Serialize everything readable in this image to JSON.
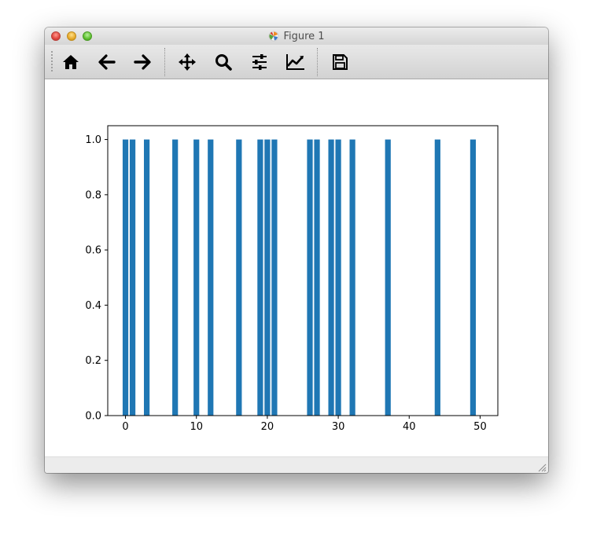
{
  "window": {
    "title": "Figure 1"
  },
  "toolbar": {
    "buttons": [
      {
        "name": "home-button",
        "icon": "home-icon"
      },
      {
        "name": "back-button",
        "icon": "arrow-left-icon"
      },
      {
        "name": "forward-button",
        "icon": "arrow-right-icon"
      },
      {
        "name": "pan-button",
        "icon": "move-arrows-icon"
      },
      {
        "name": "zoom-button",
        "icon": "magnifier-icon"
      },
      {
        "name": "configure-subplots-button",
        "icon": "sliders-icon"
      },
      {
        "name": "edit-axes-button",
        "icon": "line-chart-icon"
      },
      {
        "name": "save-button",
        "icon": "floppy-disk-icon"
      }
    ]
  },
  "colors": {
    "bar": "#1f77b4"
  },
  "chart_data": {
    "type": "bar",
    "x": [
      0,
      1,
      3,
      7,
      10,
      12,
      16,
      19,
      20,
      21,
      26,
      27,
      29,
      30,
      32,
      37,
      44,
      49
    ],
    "values": [
      1,
      1,
      1,
      1,
      1,
      1,
      1,
      1,
      1,
      1,
      1,
      1,
      1,
      1,
      1,
      1,
      1,
      1
    ],
    "xlim": [
      -2.5,
      52.5
    ],
    "ylim": [
      0,
      1.05
    ],
    "xticks": [
      0,
      10,
      20,
      30,
      40,
      50
    ],
    "yticks": [
      0.0,
      0.2,
      0.4,
      0.6,
      0.8,
      1.0
    ],
    "xtick_labels": [
      "0",
      "10",
      "20",
      "30",
      "40",
      "50"
    ],
    "ytick_labels": [
      "0.0",
      "0.2",
      "0.4",
      "0.6",
      "0.8",
      "1.0"
    ],
    "title": "",
    "xlabel": "",
    "ylabel": "",
    "grid": false
  }
}
